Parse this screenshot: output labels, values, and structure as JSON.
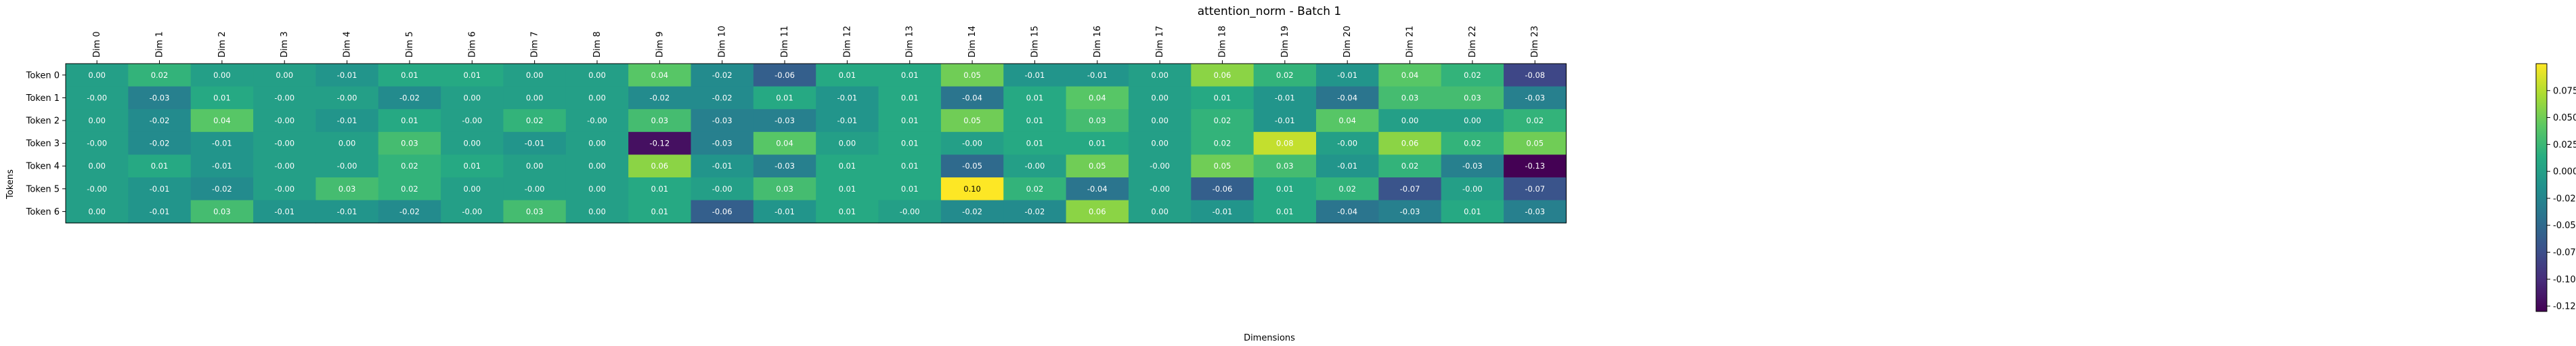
{
  "chart_data": {
    "type": "heatmap",
    "title": "attention_norm - Batch 1",
    "xlabel": "Dimensions",
    "ylabel": "Tokens",
    "colormap": "viridis",
    "clim": [
      -0.13,
      0.1
    ],
    "colorbar_ticks": [
      "0.075",
      "0.050",
      "0.025",
      "0.000",
      "-0.025",
      "-0.050",
      "-0.075",
      "-0.100",
      "-0.125"
    ],
    "colorbar_tick_values": [
      0.075,
      0.05,
      0.025,
      0.0,
      -0.025,
      -0.05,
      -0.075,
      -0.1,
      -0.125
    ],
    "x_labels": [
      "Dim 0",
      "Dim 1",
      "Dim 2",
      "Dim 3",
      "Dim 4",
      "Dim 5",
      "Dim 6",
      "Dim 7",
      "Dim 8",
      "Dim 9",
      "Dim 10",
      "Dim 11",
      "Dim 12",
      "Dim 13",
      "Dim 14",
      "Dim 15",
      "Dim 16",
      "Dim 17",
      "Dim 18",
      "Dim 19",
      "Dim 20",
      "Dim 21",
      "Dim 22",
      "Dim 23"
    ],
    "y_labels": [
      "Token 0",
      "Token 1",
      "Token 2",
      "Token 3",
      "Token 4",
      "Token 5",
      "Token 6"
    ],
    "values": [
      [
        0.0,
        0.02,
        0.0,
        0.0,
        -0.01,
        0.01,
        0.01,
        0.0,
        0.0,
        0.04,
        -0.02,
        -0.06,
        0.01,
        0.01,
        0.05,
        -0.01,
        -0.01,
        0.0,
        0.06,
        0.02,
        -0.01,
        0.04,
        0.02,
        -0.08
      ],
      [
        -0.0,
        -0.03,
        0.01,
        -0.0,
        -0.0,
        -0.02,
        0.0,
        0.0,
        0.0,
        -0.02,
        -0.02,
        0.01,
        -0.01,
        0.01,
        -0.04,
        0.01,
        0.04,
        0.0,
        0.01,
        -0.01,
        -0.04,
        0.03,
        0.03,
        -0.03
      ],
      [
        0.0,
        -0.02,
        0.04,
        -0.0,
        -0.01,
        0.01,
        -0.0,
        0.02,
        -0.0,
        0.03,
        -0.03,
        -0.03,
        -0.01,
        0.01,
        0.05,
        0.01,
        0.03,
        0.0,
        0.02,
        -0.01,
        0.04,
        0.0,
        0.0,
        0.02
      ],
      [
        -0.0,
        -0.02,
        -0.01,
        -0.0,
        0.0,
        0.03,
        0.0,
        -0.01,
        0.0,
        -0.12,
        -0.03,
        0.04,
        0.0,
        0.01,
        -0.0,
        0.01,
        0.01,
        0.0,
        0.02,
        0.08,
        -0.0,
        0.06,
        0.02,
        0.05
      ],
      [
        0.0,
        0.01,
        -0.01,
        -0.0,
        -0.0,
        0.02,
        0.01,
        0.0,
        0.0,
        0.06,
        -0.01,
        -0.03,
        0.01,
        0.01,
        -0.05,
        -0.0,
        0.05,
        -0.0,
        0.05,
        0.03,
        -0.01,
        0.02,
        -0.03,
        -0.13
      ],
      [
        -0.0,
        -0.01,
        -0.02,
        -0.0,
        0.03,
        0.02,
        0.0,
        -0.0,
        0.0,
        0.01,
        -0.0,
        0.03,
        0.01,
        0.01,
        0.1,
        0.02,
        -0.04,
        -0.0,
        -0.06,
        0.01,
        0.02,
        -0.07,
        -0.0,
        -0.07
      ],
      [
        0.0,
        -0.01,
        0.03,
        -0.01,
        -0.01,
        -0.02,
        -0.0,
        0.03,
        0.0,
        0.01,
        -0.06,
        -0.01,
        0.01,
        -0.0,
        -0.02,
        -0.02,
        0.06,
        0.0,
        -0.01,
        0.01,
        -0.04,
        -0.03,
        0.01,
        -0.03
      ]
    ],
    "value_format": "2 decimals",
    "grid": false,
    "legend": "colorbar-right"
  }
}
